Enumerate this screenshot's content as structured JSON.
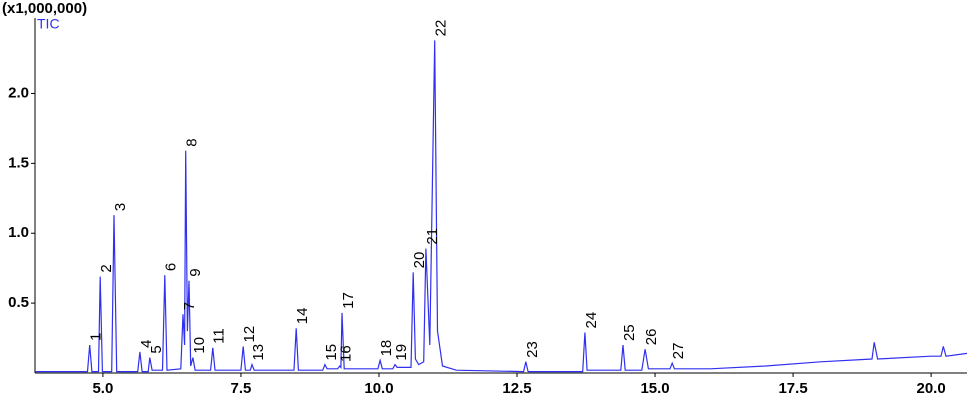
{
  "chart_data": {
    "type": "line",
    "title": "(x1,000,000)",
    "series": [
      {
        "name": "TIC",
        "color": "#3030f0",
        "x": [
          3.77,
          4.72,
          4.76,
          4.8,
          4.92,
          4.95,
          4.99,
          5.16,
          5.2,
          5.25,
          5.63,
          5.67,
          5.71,
          5.82,
          5.85,
          5.89,
          6.08,
          6.12,
          6.16,
          6.41,
          6.45,
          6.48,
          6.5,
          6.53,
          6.56,
          6.59,
          6.63,
          6.67,
          6.95,
          6.99,
          7.03,
          7.5,
          7.54,
          7.58,
          7.67,
          7.7,
          7.74,
          8.46,
          8.5,
          8.54,
          8.98,
          9.02,
          9.06,
          9.25,
          9.29,
          9.31,
          9.33,
          9.37,
          9.98,
          10.02,
          10.06,
          10.25,
          10.29,
          10.33,
          10.58,
          10.62,
          10.66,
          10.72,
          10.81,
          10.85,
          10.92,
          11.01,
          11.06,
          11.15,
          11.4,
          12.62,
          12.66,
          12.7,
          13.69,
          13.73,
          13.77,
          14.38,
          14.42,
          14.46,
          14.76,
          14.82,
          14.88,
          15.27,
          15.31,
          15.35,
          16.0,
          17.0,
          18.0,
          18.93,
          18.97,
          19.03,
          20.0,
          20.18,
          20.22,
          20.27,
          20.65
        ],
        "values": [
          0.01,
          0.01,
          0.2,
          0.01,
          0.01,
          0.69,
          0.01,
          0.01,
          1.13,
          0.01,
          0.01,
          0.15,
          0.01,
          0.01,
          0.11,
          0.02,
          0.02,
          0.7,
          0.02,
          0.03,
          0.42,
          0.2,
          1.59,
          0.3,
          0.66,
          0.05,
          0.11,
          0.02,
          0.02,
          0.18,
          0.02,
          0.02,
          0.19,
          0.02,
          0.02,
          0.06,
          0.02,
          0.02,
          0.32,
          0.02,
          0.02,
          0.06,
          0.03,
          0.03,
          0.05,
          0.04,
          0.43,
          0.03,
          0.03,
          0.09,
          0.03,
          0.03,
          0.06,
          0.04,
          0.04,
          0.72,
          0.1,
          0.06,
          0.08,
          0.89,
          0.2,
          2.38,
          0.3,
          0.05,
          0.02,
          0.01,
          0.08,
          0.01,
          0.01,
          0.29,
          0.02,
          0.02,
          0.2,
          0.02,
          0.02,
          0.17,
          0.03,
          0.03,
          0.07,
          0.03,
          0.03,
          0.05,
          0.08,
          0.1,
          0.22,
          0.1,
          0.12,
          0.12,
          0.19,
          0.12,
          0.14
        ]
      }
    ],
    "annotations": [
      {
        "label": "1",
        "x": 4.76,
        "y": 0.2
      },
      {
        "label": "2",
        "x": 4.95,
        "y": 0.69
      },
      {
        "label": "3",
        "x": 5.2,
        "y": 1.13
      },
      {
        "label": "4",
        "x": 5.67,
        "y": 0.15
      },
      {
        "label": "5",
        "x": 5.85,
        "y": 0.11
      },
      {
        "label": "6",
        "x": 6.12,
        "y": 0.7
      },
      {
        "label": "7",
        "x": 6.45,
        "y": 0.42
      },
      {
        "label": "8",
        "x": 6.5,
        "y": 1.59
      },
      {
        "label": "9",
        "x": 6.56,
        "y": 0.66
      },
      {
        "label": "10",
        "x": 6.63,
        "y": 0.11
      },
      {
        "label": "11",
        "x": 6.99,
        "y": 0.18
      },
      {
        "label": "12",
        "x": 7.54,
        "y": 0.19
      },
      {
        "label": "13",
        "x": 7.7,
        "y": 0.06
      },
      {
        "label": "14",
        "x": 8.5,
        "y": 0.32
      },
      {
        "label": "15",
        "x": 9.02,
        "y": 0.06
      },
      {
        "label": "16",
        "x": 9.29,
        "y": 0.05
      },
      {
        "label": "17",
        "x": 9.33,
        "y": 0.43
      },
      {
        "label": "18",
        "x": 10.02,
        "y": 0.09
      },
      {
        "label": "19",
        "x": 10.29,
        "y": 0.06
      },
      {
        "label": "20",
        "x": 10.62,
        "y": 0.72
      },
      {
        "label": "21",
        "x": 10.85,
        "y": 0.89
      },
      {
        "label": "22",
        "x": 11.01,
        "y": 2.38
      },
      {
        "label": "23",
        "x": 12.66,
        "y": 0.08
      },
      {
        "label": "24",
        "x": 13.73,
        "y": 0.29
      },
      {
        "label": "25",
        "x": 14.42,
        "y": 0.2
      },
      {
        "label": "26",
        "x": 14.82,
        "y": 0.17
      },
      {
        "label": "27",
        "x": 15.31,
        "y": 0.07
      }
    ],
    "xlim": [
      3.77,
      20.65
    ],
    "xticks": [
      {
        "value": 5,
        "label": "5.0"
      },
      7.5,
      {
        "value": 10,
        "label": "10.0"
      },
      12.5,
      {
        "value": 15,
        "label": "15.0"
      },
      17.5,
      {
        "value": 20,
        "label": "20.0"
      }
    ],
    "ylim": [
      0,
      2.54
    ],
    "yticks": [
      0.5,
      {
        "value": 1,
        "label": "1.0"
      },
      1.5,
      {
        "value": 2,
        "label": "2.0"
      }
    ]
  }
}
